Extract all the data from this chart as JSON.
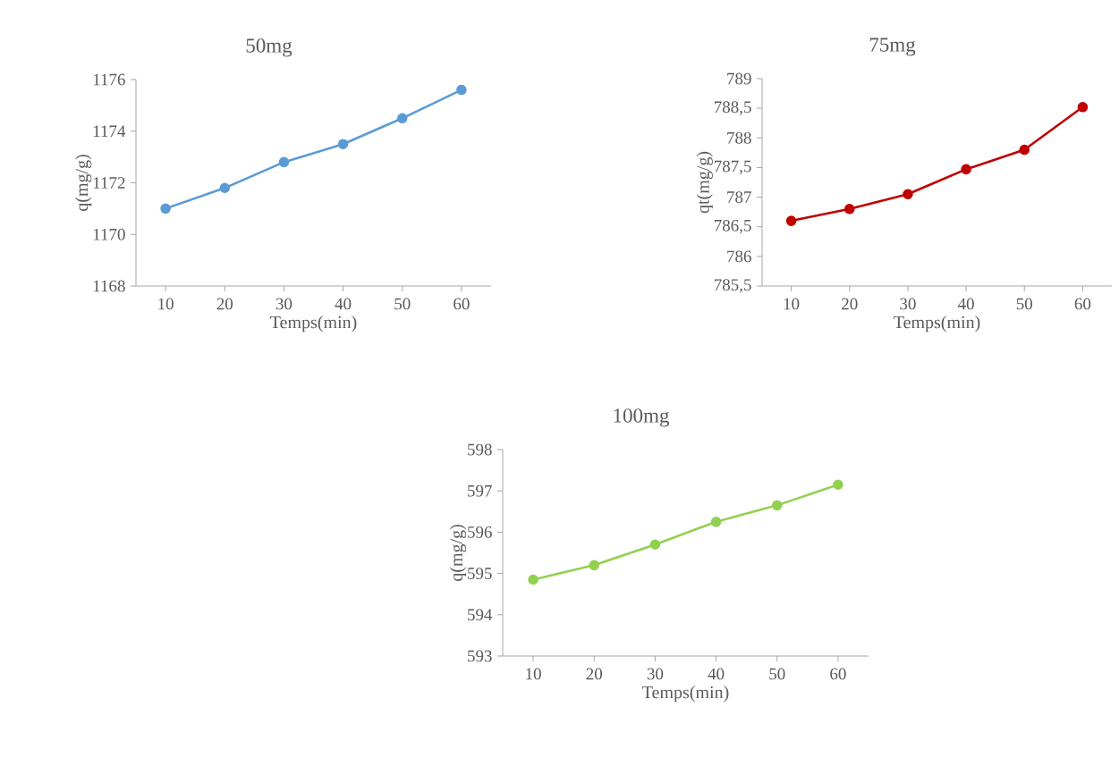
{
  "chart_data": [
    {
      "type": "line",
      "title": "50mg",
      "xlabel": "Temps(min)",
      "ylabel": "q(mg/g)",
      "categories": [
        "10",
        "20",
        "30",
        "40",
        "50",
        "60"
      ],
      "marker": "circle",
      "line_style": "solid",
      "series": [
        {
          "color": "#5b9bd5",
          "values": [
            1171.0,
            1171.8,
            1172.8,
            1173.5,
            1174.5,
            1175.6
          ]
        }
      ],
      "ylim": [
        1168,
        1176
      ],
      "yticks": [
        1168,
        1170,
        1172,
        1174,
        1176
      ]
    },
    {
      "type": "line",
      "title": "75mg",
      "xlabel": "Temps(min)",
      "ylabel": "qt(mg/g)",
      "categories": [
        "10",
        "20",
        "30",
        "40",
        "50",
        "60"
      ],
      "marker": "circle",
      "line_style": "solid",
      "series": [
        {
          "color": "#c00000",
          "values": [
            786.6,
            786.8,
            787.05,
            787.47,
            787.8,
            788.52
          ]
        }
      ],
      "ylim": [
        785.5,
        789
      ],
      "yticks": [
        {
          "value": 785.5,
          "label": "785,5"
        },
        786,
        {
          "value": 786.5,
          "label": "786,5"
        },
        787,
        {
          "value": 787.5,
          "label": "787,5"
        },
        788,
        {
          "value": 788.5,
          "label": "788,5"
        },
        789
      ]
    },
    {
      "type": "line",
      "title": "100mg",
      "xlabel": "Temps(min)",
      "ylabel": "q(mg/g)",
      "categories": [
        "10",
        "20",
        "30",
        "40",
        "50",
        "60"
      ],
      "marker": "circle",
      "line_style": "solid",
      "series": [
        {
          "color": "#92d050",
          "values": [
            594.85,
            595.2,
            595.7,
            596.25,
            596.65,
            597.15
          ]
        }
      ],
      "ylim": [
        593,
        598
      ],
      "yticks": [
        593,
        594,
        595,
        596,
        597,
        598
      ]
    }
  ]
}
